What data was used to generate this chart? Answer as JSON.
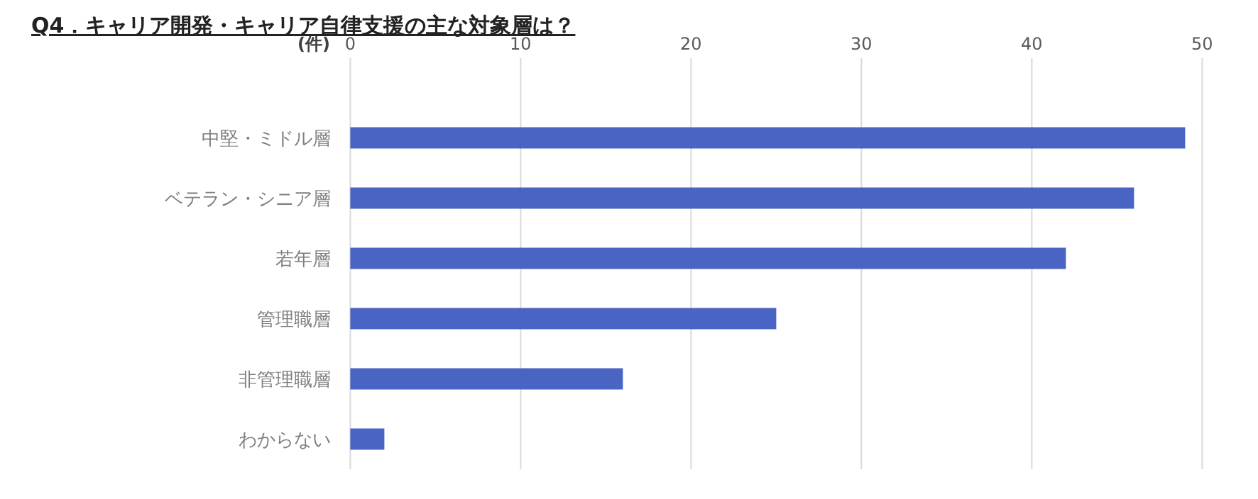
{
  "chart_data": {
    "type": "bar",
    "orientation": "horizontal",
    "title": "Q4．キャリア開発・キャリア自律支援の主な対象層は？",
    "xlabel": "(件)",
    "categories": [
      "中堅・ミドル層",
      "ベテラン・シニア層",
      "若年層",
      "管理職層",
      "非管理職層",
      "わからない"
    ],
    "values": [
      49,
      46,
      42,
      25,
      16,
      2
    ],
    "color": "#4964c2",
    "xlim": [
      0,
      50
    ],
    "xticks": [
      0,
      10,
      20,
      30,
      40,
      50
    ],
    "grid": "x"
  }
}
